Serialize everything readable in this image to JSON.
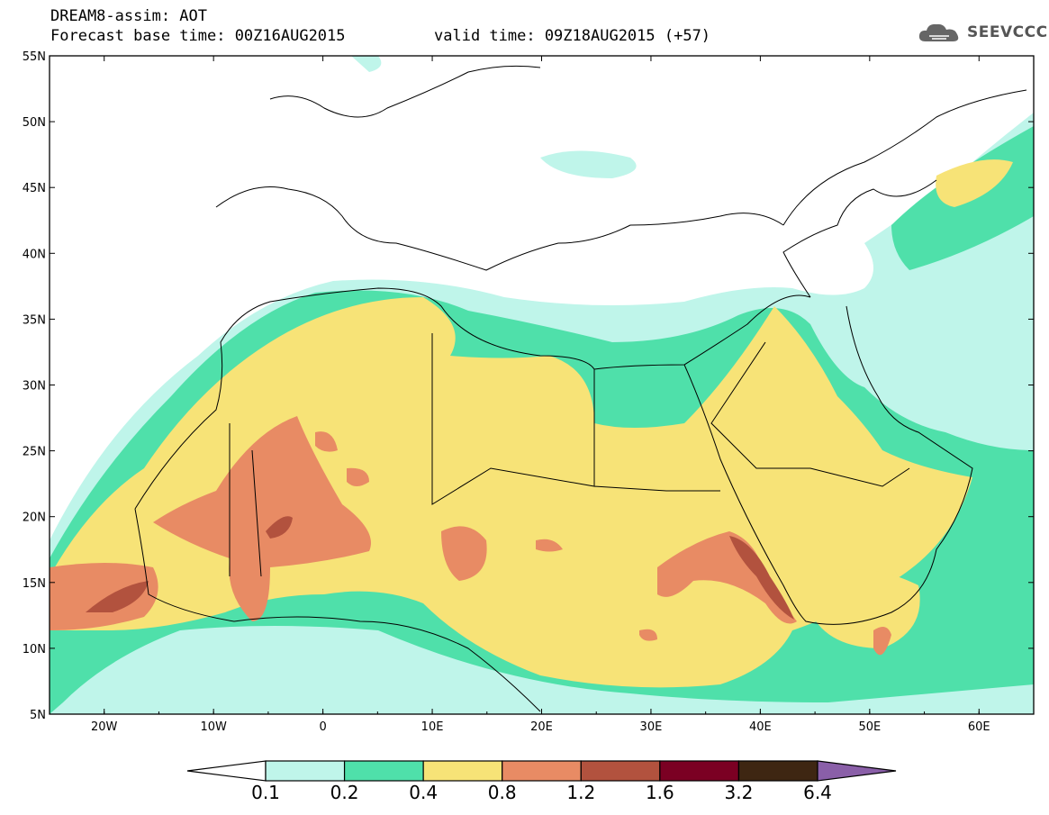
{
  "header": {
    "title": "DREAM8-assim: AOT",
    "base_time": "Forecast base time: 00Z16AUG2015",
    "valid_time": "valid time: 09Z18AUG2015 (+57)"
  },
  "logo": {
    "text": "SEEVCCC",
    "icon": "cloud-icon"
  },
  "map": {
    "lon_range": [
      -25,
      65
    ],
    "lat_range": [
      5,
      55
    ],
    "lat_ticks": [
      "5N",
      "10N",
      "15N",
      "20N",
      "25N",
      "30N",
      "35N",
      "40N",
      "45N",
      "50N",
      "55N"
    ],
    "lon_ticks": [
      "20W",
      "10W",
      "0",
      "10E",
      "20E",
      "30E",
      "40E",
      "50E",
      "60E"
    ]
  },
  "colorbar": {
    "labels": [
      "0.1",
      "0.2",
      "0.4",
      "0.8",
      "1.2",
      "1.6",
      "3.2",
      "6.4"
    ],
    "colors": [
      "#ffffff",
      "#bff5ea",
      "#4fe0aa",
      "#f7e377",
      "#e88b64",
      "#b2523e",
      "#7b0023",
      "#3e2612",
      "#8a5fa8"
    ]
  }
}
